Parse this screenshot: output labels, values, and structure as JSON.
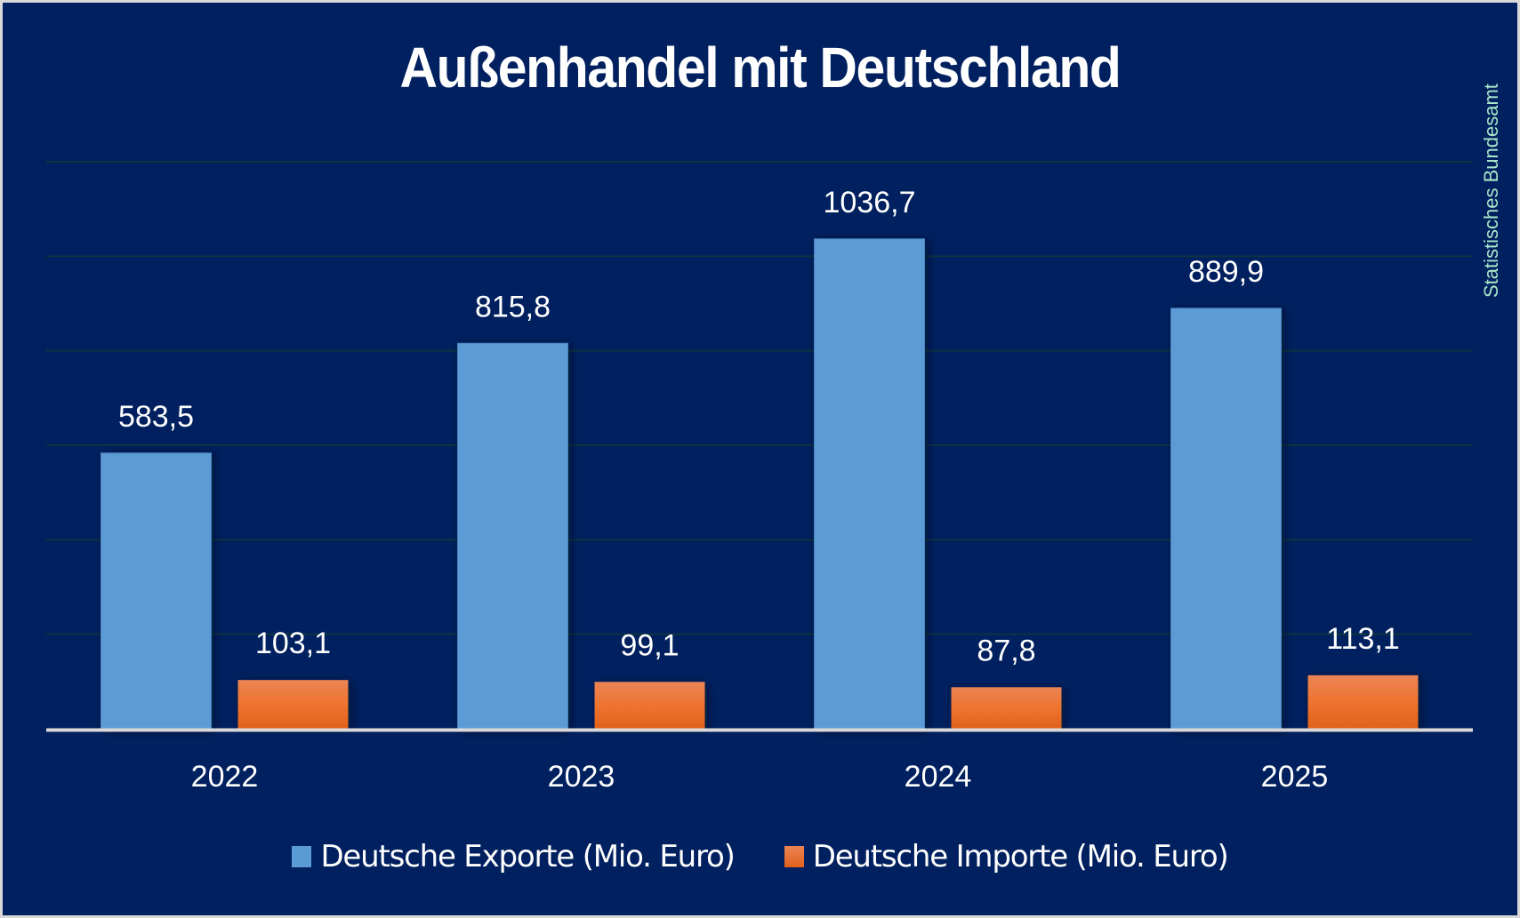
{
  "chart_data": {
    "type": "bar",
    "title": "Außenhandel mit Deutschland",
    "source_label": "Statistisches Bundesamt",
    "categories": [
      "2022",
      "2023",
      "2024",
      "2025"
    ],
    "series": [
      {
        "name": "Deutsche Exporte (Mio. Euro)",
        "color": "#5b9bd5",
        "values": [
          583.5,
          815.8,
          1036.7,
          889.9
        ],
        "labels": [
          "583,5",
          "815,8",
          "1036,7",
          "889,9"
        ]
      },
      {
        "name": "Deutsche Importe (Mio. Euro)",
        "color": "#ed7d31",
        "values": [
          103.1,
          99.1,
          87.8,
          113.1
        ],
        "labels": [
          "103,1",
          "99,1",
          "87,8",
          "113,1"
        ]
      }
    ],
    "xlabel": "",
    "ylabel": "",
    "ylim": [
      0,
      1200
    ],
    "gridlines": [
      200,
      400,
      600,
      800,
      1000,
      1200
    ],
    "grid": true,
    "y_axis_labels_visible": false,
    "legend_position": "bottom",
    "colors": {
      "background": "#00205f",
      "gridline": "#0e3440",
      "axis": "#d9d9d9",
      "text": "#ffffff",
      "source_text": "#a8e6c9"
    }
  }
}
